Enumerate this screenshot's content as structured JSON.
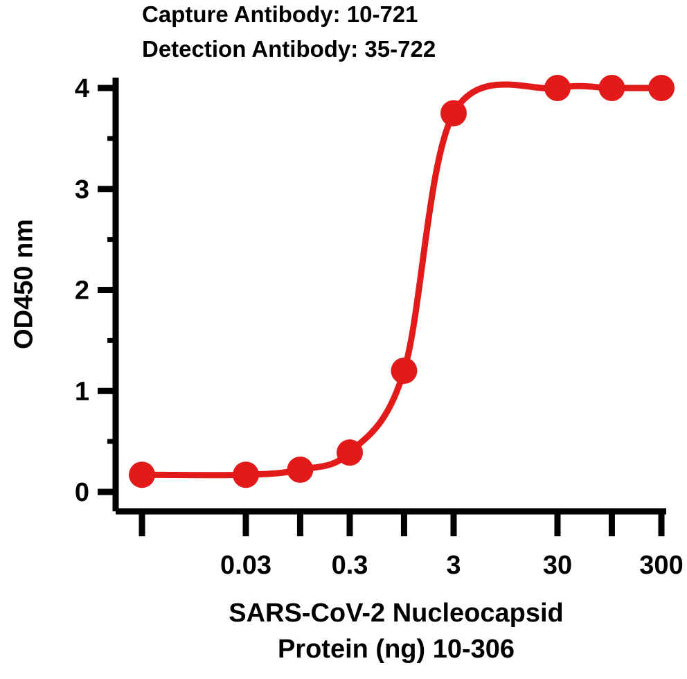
{
  "chart_data": {
    "type": "line",
    "title": [
      "Capture Antibody: 10-721",
      "Detection Antibody: 35-722"
    ],
    "xlabel": [
      "SARS-CoV-2 Nucleocapsid",
      "Protein (ng) 10-306"
    ],
    "ylabel": "OD450 nm",
    "x_scale": "log",
    "x_ticks": [
      0.003,
      0.03,
      0.1,
      0.3,
      1,
      3,
      30,
      100,
      300
    ],
    "x_tick_labels": [
      "0.03",
      "0.3",
      "3",
      "30",
      "300"
    ],
    "x_tick_label_values": [
      0.03,
      0.3,
      3,
      30,
      300
    ],
    "ylim": [
      0,
      4
    ],
    "y_ticks": [
      0,
      1,
      2,
      3,
      4
    ],
    "y_tick_labels": [
      "0",
      "1",
      "2",
      "3",
      "4"
    ],
    "y_minor_ticks": [
      0.5,
      1.5,
      2.5,
      3.5
    ],
    "grid": false,
    "series": [
      {
        "color": "#e21a1a",
        "x": [
          0.003,
          0.03,
          0.1,
          0.3,
          1,
          3,
          30,
          100,
          300
        ],
        "y": [
          0.17,
          0.17,
          0.22,
          0.39,
          1.2,
          3.75,
          4.0,
          4.0,
          4.0
        ]
      }
    ]
  }
}
